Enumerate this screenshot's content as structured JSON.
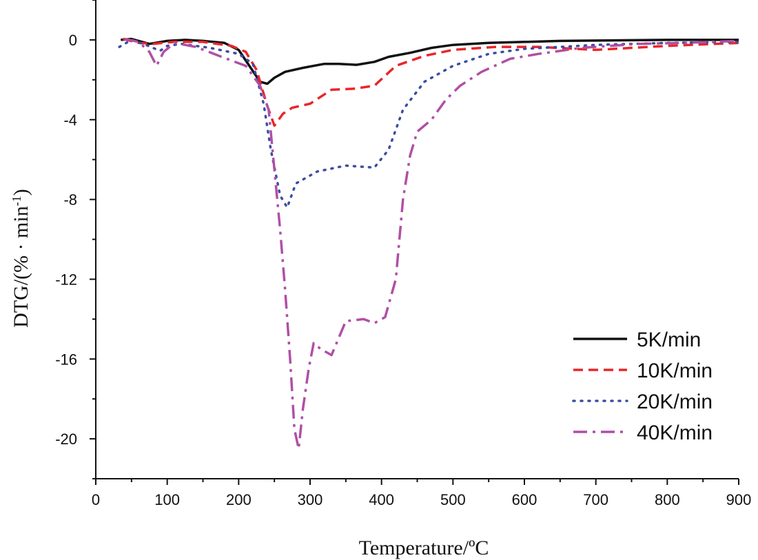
{
  "chart_data": {
    "type": "line",
    "title": "",
    "xlabel": "Temperature/ºC",
    "ylabel_main": "DTG/(% · min",
    "ylabel_sup": "-1",
    "ylabel_close": ")",
    "xlim": [
      0,
      900
    ],
    "ylim": [
      -22,
      2
    ],
    "x_ticks": [
      0,
      100,
      200,
      300,
      400,
      500,
      600,
      700,
      800,
      900
    ],
    "x_tick_labels": [
      "0",
      "100",
      "200",
      "300",
      "400",
      "500",
      "600",
      "700",
      "800",
      "900"
    ],
    "y_ticks": [
      0,
      -4,
      -8,
      -12,
      -16,
      -20
    ],
    "y_tick_labels": [
      "0",
      "-4",
      "-8",
      "-12",
      "-16",
      "-20"
    ],
    "grid": false,
    "legend_position": "bottom-right",
    "series": [
      {
        "name": "5K/min",
        "color": "#111111",
        "style": "solid",
        "points": [
          [
            35,
            0
          ],
          [
            50,
            0.05
          ],
          [
            75,
            -0.2
          ],
          [
            100,
            -0.05
          ],
          [
            125,
            0
          ],
          [
            150,
            -0.05
          ],
          [
            180,
            -0.15
          ],
          [
            200,
            -0.5
          ],
          [
            215,
            -1.3
          ],
          [
            230,
            -2.1
          ],
          [
            240,
            -2.2
          ],
          [
            250,
            -1.9
          ],
          [
            265,
            -1.6
          ],
          [
            290,
            -1.4
          ],
          [
            320,
            -1.2
          ],
          [
            340,
            -1.2
          ],
          [
            365,
            -1.25
          ],
          [
            390,
            -1.1
          ],
          [
            410,
            -0.85
          ],
          [
            440,
            -0.65
          ],
          [
            470,
            -0.4
          ],
          [
            500,
            -0.25
          ],
          [
            550,
            -0.15
          ],
          [
            650,
            -0.05
          ],
          [
            800,
            0
          ],
          [
            900,
            0
          ]
        ]
      },
      {
        "name": "10K/min",
        "color": "#e8262b",
        "style": "dashed",
        "points": [
          [
            38,
            0.05
          ],
          [
            60,
            -0.15
          ],
          [
            80,
            -0.2
          ],
          [
            110,
            -0.1
          ],
          [
            150,
            -0.1
          ],
          [
            190,
            -0.3
          ],
          [
            210,
            -0.6
          ],
          [
            225,
            -1.5
          ],
          [
            240,
            -3.3
          ],
          [
            250,
            -4.3
          ],
          [
            262,
            -3.7
          ],
          [
            275,
            -3.4
          ],
          [
            300,
            -3.2
          ],
          [
            330,
            -2.5
          ],
          [
            360,
            -2.45
          ],
          [
            390,
            -2.3
          ],
          [
            420,
            -1.3
          ],
          [
            460,
            -0.8
          ],
          [
            500,
            -0.5
          ],
          [
            560,
            -0.35
          ],
          [
            620,
            -0.35
          ],
          [
            700,
            -0.5
          ],
          [
            800,
            -0.3
          ],
          [
            900,
            -0.15
          ]
        ]
      },
      {
        "name": "20K/min",
        "color": "#3b4ea0",
        "style": "dotted",
        "points": [
          [
            33,
            -0.35
          ],
          [
            50,
            0
          ],
          [
            70,
            -0.25
          ],
          [
            90,
            -0.55
          ],
          [
            100,
            -0.3
          ],
          [
            120,
            -0.2
          ],
          [
            160,
            -0.4
          ],
          [
            200,
            -0.7
          ],
          [
            220,
            -1.2
          ],
          [
            235,
            -3.2
          ],
          [
            245,
            -5.5
          ],
          [
            258,
            -7.8
          ],
          [
            268,
            -8.4
          ],
          [
            280,
            -7.2
          ],
          [
            310,
            -6.6
          ],
          [
            350,
            -6.3
          ],
          [
            390,
            -6.4
          ],
          [
            410,
            -5.5
          ],
          [
            430,
            -3.5
          ],
          [
            460,
            -2.1
          ],
          [
            500,
            -1.3
          ],
          [
            550,
            -0.7
          ],
          [
            600,
            -0.45
          ],
          [
            650,
            -0.35
          ],
          [
            700,
            -0.25
          ],
          [
            800,
            -0.15
          ],
          [
            900,
            -0.1
          ]
        ]
      },
      {
        "name": "40K/min",
        "color": "#b04fa6",
        "style": "dashdot",
        "points": [
          [
            40,
            0.05
          ],
          [
            60,
            -0.1
          ],
          [
            75,
            -0.6
          ],
          [
            85,
            -1.3
          ],
          [
            95,
            -0.6
          ],
          [
            110,
            -0.15
          ],
          [
            140,
            -0.35
          ],
          [
            180,
            -0.9
          ],
          [
            210,
            -1.3
          ],
          [
            230,
            -2.3
          ],
          [
            242,
            -3.5
          ],
          [
            250,
            -6.5
          ],
          [
            258,
            -9.5
          ],
          [
            265,
            -12.5
          ],
          [
            272,
            -16
          ],
          [
            278,
            -19.5
          ],
          [
            284,
            -20.5
          ],
          [
            290,
            -18.5
          ],
          [
            298,
            -16.5
          ],
          [
            305,
            -15.2
          ],
          [
            315,
            -15.5
          ],
          [
            330,
            -15.8
          ],
          [
            350,
            -14.1
          ],
          [
            375,
            -14
          ],
          [
            390,
            -14.2
          ],
          [
            405,
            -13.9
          ],
          [
            420,
            -12
          ],
          [
            430,
            -8
          ],
          [
            440,
            -5.8
          ],
          [
            450,
            -4.6
          ],
          [
            470,
            -4
          ],
          [
            490,
            -3
          ],
          [
            510,
            -2.3
          ],
          [
            540,
            -1.6
          ],
          [
            580,
            -0.95
          ],
          [
            620,
            -0.7
          ],
          [
            680,
            -0.4
          ],
          [
            760,
            -0.2
          ],
          [
            820,
            -0.15
          ],
          [
            900,
            -0.05
          ]
        ]
      }
    ]
  }
}
